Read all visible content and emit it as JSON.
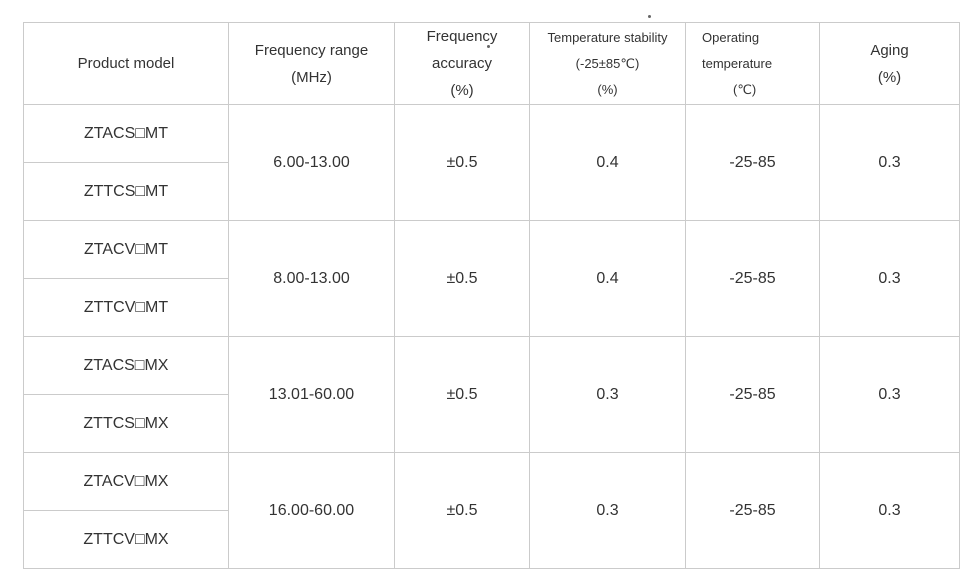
{
  "page": {
    "background_color": "#ffffff"
  },
  "table": {
    "border_color": "#cbcbcb",
    "text_color": "#333333",
    "header": {
      "product_model": "Product model",
      "frequency_range": [
        "Frequency range",
        "(MHz)"
      ],
      "frequency_accuracy": [
        "Frequency",
        "accuracy",
        "(%)"
      ],
      "temperature_stability": [
        "Temperature stability",
        "(-25±85℃)",
        "(%)"
      ],
      "operating_temperature": [
        "Operating",
        "temperature",
        "(℃)"
      ],
      "aging": [
        "Aging",
        "(%)"
      ]
    },
    "groups": [
      {
        "models": [
          "ZTACS□MT",
          "ZTTCS□MT"
        ],
        "frequency_range_mhz": "6.00-13.00",
        "frequency_accuracy_pct": "±0.5",
        "temperature_stability_pct": "0.4",
        "operating_temperature_c": "-25-85",
        "aging_pct": "0.3"
      },
      {
        "models": [
          "ZTACV□MT",
          "ZTTCV□MT"
        ],
        "frequency_range_mhz": "8.00-13.00",
        "frequency_accuracy_pct": "±0.5",
        "temperature_stability_pct": "0.4",
        "operating_temperature_c": "-25-85",
        "aging_pct": "0.3"
      },
      {
        "models": [
          "ZTACS□MX",
          "ZTTCS□MX"
        ],
        "frequency_range_mhz": "13.01-60.00",
        "frequency_accuracy_pct": "±0.5",
        "temperature_stability_pct": "0.3",
        "operating_temperature_c": "-25-85",
        "aging_pct": "0.3"
      },
      {
        "models": [
          "ZTACV□MX",
          "ZTTCV□MX"
        ],
        "frequency_range_mhz": "16.00-60.00",
        "frequency_accuracy_pct": "±0.5",
        "temperature_stability_pct": "0.3",
        "operating_temperature_c": "-25-85",
        "aging_pct": "0.3"
      }
    ]
  }
}
